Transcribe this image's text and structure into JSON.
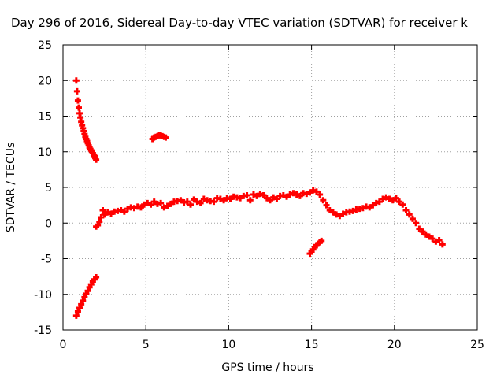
{
  "chart_data": {
    "type": "scatter",
    "title": "Day 296 of 2016, Sidereal Day-to-day VTEC variation (SDTVAR) for receiver k",
    "xlabel": "GPS time / hours",
    "ylabel": "SDTVAR / TECUs",
    "xlim": [
      0,
      25
    ],
    "ylim": [
      -15,
      25
    ],
    "xticks": [
      "0",
      "5",
      "10",
      "15",
      "20",
      "25"
    ],
    "yticks": [
      "-15",
      "-10",
      "-5",
      "0",
      "5",
      "10",
      "15",
      "20",
      "25"
    ],
    "grid": true,
    "marker": "+",
    "color": "#ff0000",
    "series": [
      {
        "x": [
          0.8,
          0.85,
          0.9,
          0.95,
          1.0,
          1.05,
          1.1,
          1.15,
          1.2,
          1.25,
          1.3,
          1.35,
          1.4,
          1.45,
          1.5,
          1.55,
          1.6,
          1.65,
          1.7,
          1.75,
          1.8,
          1.85,
          1.9,
          1.95,
          2.0
        ],
        "y": [
          20.0,
          18.5,
          17.2,
          16.2,
          15.4,
          14.8,
          14.2,
          13.7,
          13.3,
          12.9,
          12.5,
          12.1,
          11.8,
          11.5,
          11.2,
          10.9,
          10.6,
          10.4,
          10.2,
          10.0,
          9.8,
          9.6,
          9.4,
          9.1,
          8.9
        ]
      },
      {
        "x": [
          0.8,
          0.9,
          1.0,
          1.1,
          1.2,
          1.3,
          1.4,
          1.5,
          1.6,
          1.7,
          1.8,
          1.9,
          2.0
        ],
        "y": [
          -13.0,
          -12.4,
          -11.9,
          -11.4,
          -10.9,
          -10.4,
          -9.9,
          -9.5,
          -9.0,
          -8.6,
          -8.2,
          -7.9,
          -7.6
        ]
      },
      {
        "x": [
          5.4,
          5.5,
          5.6,
          5.7,
          5.8,
          5.9,
          6.0,
          6.1,
          6.2
        ],
        "y": [
          11.8,
          12.0,
          12.1,
          12.2,
          12.3,
          12.3,
          12.2,
          12.1,
          12.0
        ]
      },
      {
        "x": [
          14.9,
          15.0,
          15.1,
          15.2,
          15.3,
          15.4,
          15.5,
          15.6
        ],
        "y": [
          -4.3,
          -4.0,
          -3.7,
          -3.4,
          -3.1,
          -2.9,
          -2.7,
          -2.5
        ]
      },
      {
        "x": [
          2.0,
          2.1,
          2.2,
          2.3,
          2.4,
          2.5,
          2.7,
          2.9,
          3.1,
          3.3,
          3.5,
          3.7,
          3.9,
          4.1,
          4.3,
          4.5,
          4.7,
          4.9,
          5.1,
          5.3,
          5.5,
          5.7,
          5.9,
          6.1,
          6.3,
          6.5,
          6.7,
          6.9,
          7.1,
          7.3,
          7.5,
          7.7,
          7.9,
          8.1,
          8.3,
          8.5,
          8.7,
          8.9,
          9.1,
          9.3,
          9.5,
          9.7,
          9.9,
          10.1,
          10.3,
          10.5,
          10.7,
          10.9,
          11.1,
          11.3,
          11.5,
          11.7,
          11.9,
          12.1,
          12.3,
          12.5,
          12.7,
          12.9,
          13.1,
          13.3,
          13.5,
          13.7,
          13.9,
          14.1,
          14.3,
          14.5,
          14.7,
          14.9,
          15.1,
          15.3,
          15.5,
          15.7,
          15.9,
          16.1,
          16.3,
          16.5,
          16.7,
          16.9,
          17.1,
          17.3,
          17.5,
          17.7,
          17.9,
          18.1,
          18.3,
          18.5,
          18.7,
          18.9,
          19.1,
          19.3,
          19.5,
          19.7,
          19.9,
          20.1,
          20.3,
          20.5,
          20.7,
          20.9,
          21.1,
          21.3,
          21.5,
          21.7,
          21.9,
          22.1,
          22.3,
          22.5,
          22.7,
          22.9
        ],
        "y": [
          -0.5,
          -0.3,
          0.2,
          0.8,
          1.8,
          1.2,
          1.5,
          1.3,
          1.6,
          1.7,
          1.8,
          1.6,
          2.0,
          2.2,
          2.1,
          2.3,
          2.2,
          2.6,
          2.8,
          2.6,
          3.0,
          2.7,
          2.8,
          2.2,
          2.4,
          2.7,
          3.0,
          3.1,
          3.2,
          2.9,
          3.0,
          2.6,
          3.3,
          3.0,
          2.8,
          3.4,
          3.2,
          3.1,
          3.0,
          3.5,
          3.4,
          3.2,
          3.5,
          3.4,
          3.7,
          3.6,
          3.5,
          3.8,
          3.9,
          3.2,
          4.0,
          3.8,
          4.1,
          3.9,
          3.5,
          3.2,
          3.6,
          3.4,
          3.8,
          3.9,
          3.7,
          4.0,
          4.2,
          4.0,
          3.8,
          4.2,
          4.1,
          4.3,
          4.6,
          4.4,
          4.0,
          3.2,
          2.5,
          1.8,
          1.5,
          1.2,
          1.0,
          1.3,
          1.5,
          1.6,
          1.7,
          1.9,
          2.0,
          2.1,
          2.3,
          2.2,
          2.5,
          2.8,
          3.0,
          3.4,
          3.6,
          3.4,
          3.2,
          3.5,
          3.0,
          2.6,
          1.8,
          1.2,
          0.6,
          0.0,
          -0.8,
          -1.2,
          -1.6,
          -1.9,
          -2.2,
          -2.6,
          -2.4,
          -3.0
        ]
      }
    ]
  }
}
